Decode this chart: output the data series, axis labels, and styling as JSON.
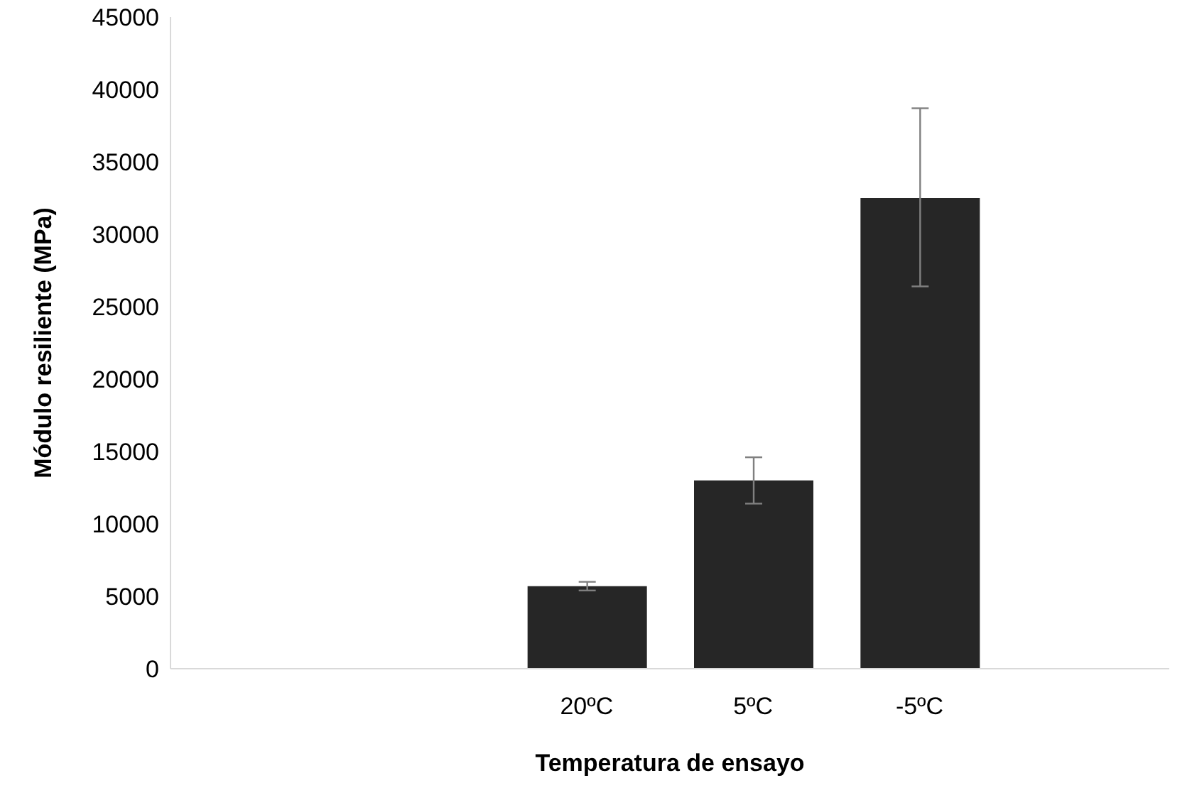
{
  "chart_data": {
    "type": "bar",
    "xlabel": "Temperatura de ensayo",
    "ylabel": "Módulo resiliente (MPa)",
    "categories": [
      null,
      null,
      "20ºC",
      "5ºC",
      "-5ºC",
      null
    ],
    "values": [
      null,
      null,
      5700,
      13000,
      32500,
      null
    ],
    "errors": [
      null,
      null,
      [
        5400,
        6000
      ],
      [
        11400,
        14600
      ],
      [
        26400,
        38700
      ],
      null
    ],
    "color": "#262626",
    "ylim": [
      0,
      45000
    ],
    "yticks": [
      0,
      5000,
      10000,
      15000,
      20000,
      25000,
      30000,
      35000,
      40000,
      45000
    ],
    "grid": false,
    "legend": false
  }
}
